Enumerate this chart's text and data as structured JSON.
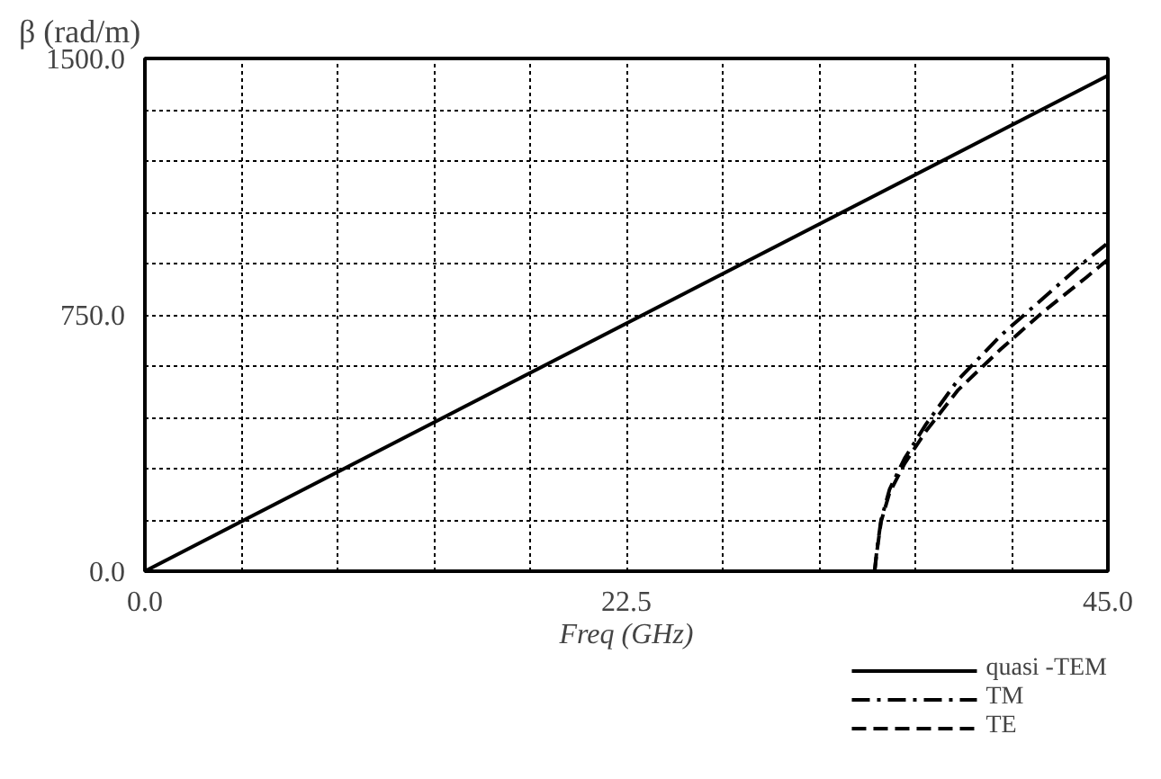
{
  "chart_data": {
    "type": "line",
    "xlabel": "Freq (GHz)",
    "ylabel": "β (rad/m)",
    "xlim": [
      0,
      45
    ],
    "ylim": [
      0,
      1500
    ],
    "xticks": [
      {
        "value": 0,
        "label": "0.0"
      },
      {
        "value": 4.5,
        "label": null
      },
      {
        "value": 9,
        "label": null
      },
      {
        "value": 13.5,
        "label": null
      },
      {
        "value": 18,
        "label": null
      },
      {
        "value": 22.5,
        "label": "22.5"
      },
      {
        "value": 27,
        "label": null
      },
      {
        "value": 31.5,
        "label": null
      },
      {
        "value": 36,
        "label": null
      },
      {
        "value": 40.5,
        "label": null
      },
      {
        "value": 45,
        "label": "45.0"
      }
    ],
    "yticks": [
      {
        "value": 0,
        "label": "0.0"
      },
      {
        "value": 150,
        "label": null
      },
      {
        "value": 300,
        "label": null
      },
      {
        "value": 450,
        "label": null
      },
      {
        "value": 600,
        "label": null
      },
      {
        "value": 750,
        "label": "750.0"
      },
      {
        "value": 900,
        "label": null
      },
      {
        "value": 1050,
        "label": null
      },
      {
        "value": 1200,
        "label": null
      },
      {
        "value": 1350,
        "label": null
      },
      {
        "value": 1500,
        "label": "1500.0"
      }
    ],
    "grid": true,
    "legend": "bottom right",
    "marker": "none",
    "series": [
      {
        "name": "quasi -TEM",
        "color": "#000000",
        "line_style": "solid",
        "x": [
          0,
          45
        ],
        "values": [
          0,
          1450
        ]
      },
      {
        "name": "TM",
        "color": "#000000",
        "line_style": "dashdot",
        "x": [
          34.1,
          34.2,
          34.4,
          34.8,
          35.5,
          36.5,
          38,
          40,
          42,
          44,
          45
        ],
        "values": [
          0,
          60,
          150,
          240,
          330,
          430,
          560,
          690,
          800,
          910,
          960
        ]
      },
      {
        "name": "TE",
        "color": "#000000",
        "line_style": "dashed",
        "x": [
          34.1,
          34.2,
          34.4,
          34.8,
          35.5,
          36.5,
          38,
          40,
          42,
          44,
          45
        ],
        "values": [
          0,
          55,
          145,
          230,
          315,
          410,
          530,
          650,
          760,
          860,
          912
        ]
      }
    ]
  }
}
